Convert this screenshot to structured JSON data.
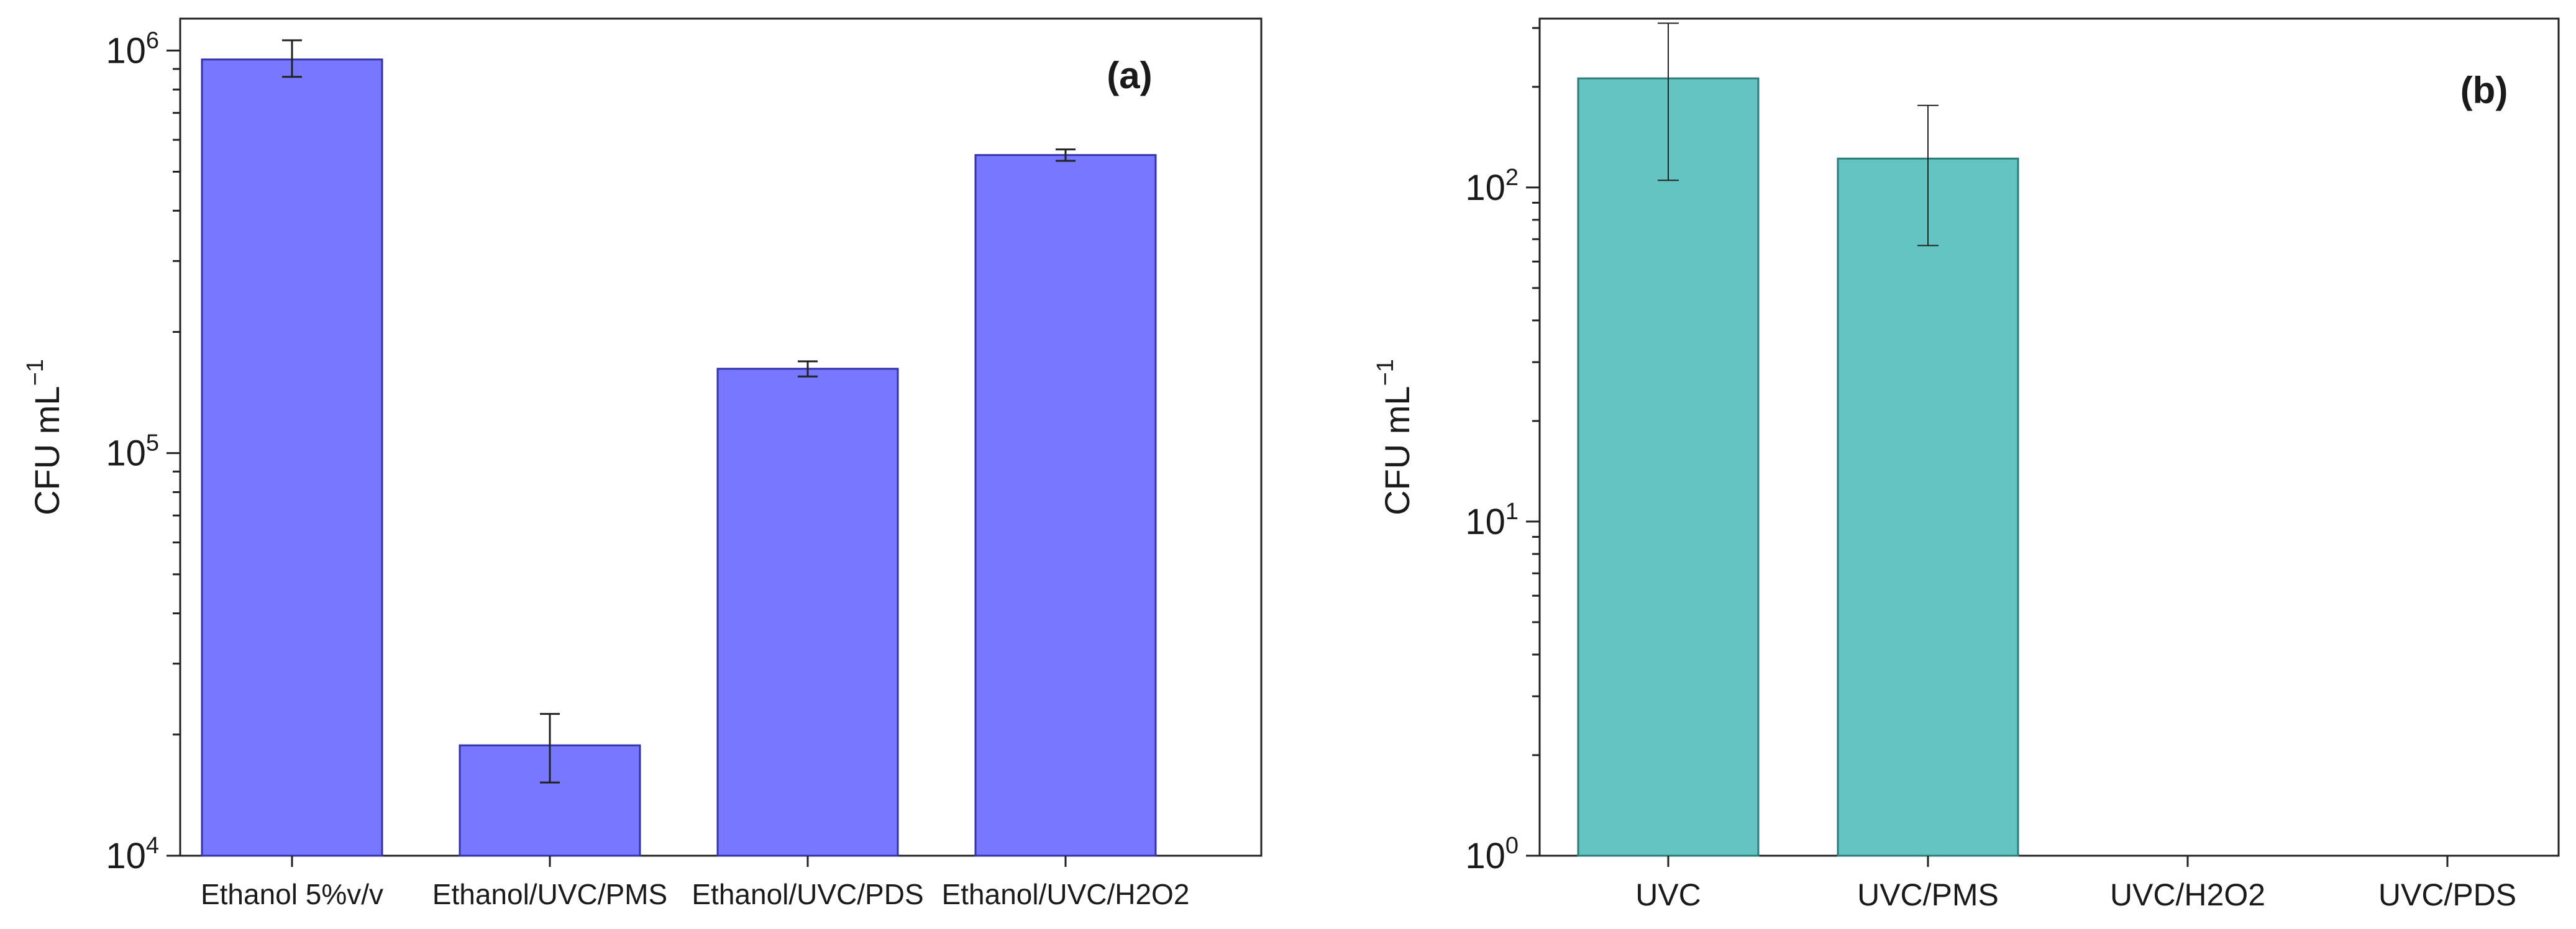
{
  "chart_data": [
    {
      "type": "bar",
      "panel": "(a)",
      "ylabel": "CFU mL⁻¹",
      "ylabel_base": "CFU mL",
      "ylabel_sup": "−1",
      "yscale": "log",
      "ylim": [
        10000,
        1200000
      ],
      "yticks": [
        {
          "value": 10000,
          "base": "10",
          "exp": "4"
        },
        {
          "value": 100000,
          "base": "10",
          "exp": "5"
        },
        {
          "value": 1000000,
          "base": "10",
          "exp": "6"
        }
      ],
      "categories": [
        "Ethanol 5%v/v",
        "Ethanol/UVC/PMS",
        "Ethanol/UVC/PDS",
        "Ethanol/UVC/H2O2"
      ],
      "values": [
        950000,
        18800,
        162000,
        550000
      ],
      "error_low": [
        860000,
        15200,
        155000,
        532000
      ],
      "error_high": [
        1060000,
        22500,
        169000,
        568000
      ],
      "bar_color": "#7777ff",
      "bar_edge": "#3333aa"
    },
    {
      "type": "bar",
      "panel": "(b)",
      "ylabel": "CFU mL⁻¹",
      "ylabel_base": "CFU mL",
      "ylabel_sup": "−1",
      "yscale": "log",
      "ylim": [
        1,
        320
      ],
      "yticks": [
        {
          "value": 1,
          "base": "10",
          "exp": "0"
        },
        {
          "value": 10,
          "base": "10",
          "exp": "1"
        },
        {
          "value": 100,
          "base": "10",
          "exp": "2"
        }
      ],
      "categories": [
        "UVC",
        "UVC/PMS",
        "UVC/H2O2",
        "UVC/PDS"
      ],
      "values": [
        212,
        122,
        0,
        0
      ],
      "error_low": [
        105,
        67,
        null,
        null
      ],
      "error_high": [
        310,
        176,
        null,
        null
      ],
      "bar_color": "#63c4c2",
      "bar_edge": "#2e7c7a"
    }
  ]
}
